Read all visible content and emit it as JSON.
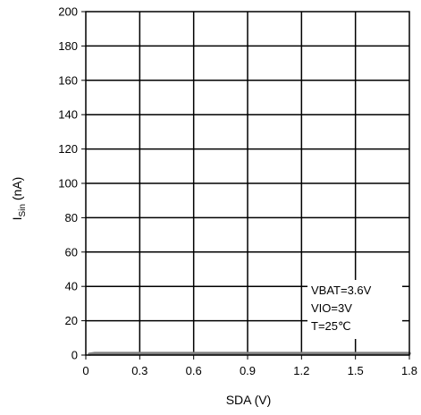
{
  "chart_data": {
    "type": "line",
    "title": "",
    "xlabel": "SDA (V)",
    "ylabel_main": "I",
    "ylabel_sub": "Sin",
    "ylabel_unit": " (nA)",
    "xlim": [
      0,
      1.8
    ],
    "ylim": [
      0,
      200
    ],
    "x_ticks": [
      0,
      0.3,
      0.6,
      0.9,
      1.2,
      1.5,
      1.8
    ],
    "x_tick_labels": [
      "0",
      "0.3",
      "0.6",
      "0.9",
      "1.2",
      "1.5",
      "1.8"
    ],
    "y_ticks": [
      0,
      20,
      40,
      60,
      80,
      100,
      120,
      140,
      160,
      180,
      200
    ],
    "y_tick_labels": [
      "0",
      "20",
      "40",
      "60",
      "80",
      "100",
      "120",
      "140",
      "160",
      "180",
      "200"
    ],
    "grid": true,
    "legend": "none",
    "series": [
      {
        "color": "#7f7f7f",
        "x": [
          0.02,
          0.05,
          0.1,
          0.3,
          0.6,
          0.9,
          1.2,
          1.5,
          1.8
        ],
        "y": [
          0.5,
          1,
          1,
          1,
          1,
          1,
          1,
          1,
          1
        ]
      }
    ],
    "annotations": [
      "VBAT=3.6V",
      "VIO=3V",
      "T=25℃"
    ]
  }
}
